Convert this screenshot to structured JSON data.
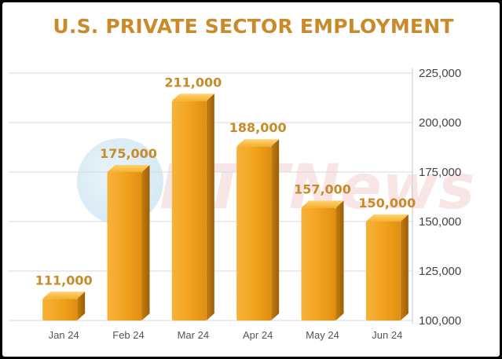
{
  "title": "U.S. PRIVATE SECTOR EMPLOYMENT",
  "watermark": "RTTNews",
  "colors": {
    "title": "#c98a2a",
    "bar_front": "#f0a21c",
    "bar_side": "#b8730e",
    "bar_top": "#ffc24a",
    "label": "#c98a2a",
    "grid": "#d9d9d9"
  },
  "chart_data": {
    "type": "bar",
    "title": "U.S. PRIVATE SECTOR EMPLOYMENT",
    "categories": [
      "Jan 24",
      "Feb 24",
      "Mar 24",
      "Apr 24",
      "May 24",
      "Jun 24"
    ],
    "values": [
      111000,
      175000,
      211000,
      188000,
      157000,
      150000
    ],
    "value_labels": [
      "111,000",
      "175,000",
      "211,000",
      "188,000",
      "157,000",
      "150,000"
    ],
    "ylim": [
      100000,
      225000
    ],
    "yticks": [
      100000,
      125000,
      150000,
      175000,
      200000,
      225000
    ],
    "ytick_labels": [
      "100,000",
      "125,000",
      "150,000",
      "175,000",
      "200,000",
      "225,000"
    ],
    "yaxis_position": "right",
    "grid": true,
    "legend": "none"
  }
}
